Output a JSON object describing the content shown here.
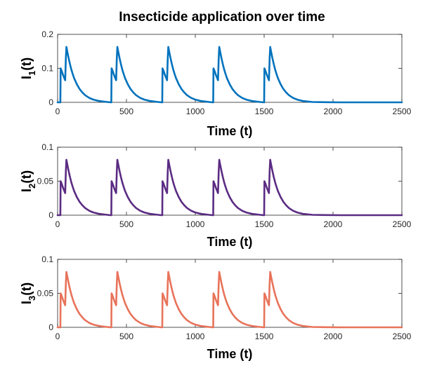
{
  "chart_data": [
    {
      "type": "line",
      "title": "Insecticide application over time",
      "xlabel": "Time (t)",
      "ylabel_main": "I",
      "ylabel_sub": "1",
      "ylabel_tail": "(t)",
      "xlim": [
        0,
        2500
      ],
      "ylim": [
        0,
        0.2
      ],
      "xticks": [
        "0",
        "500",
        "1000",
        "1500",
        "2000",
        "2500"
      ],
      "yticks": [
        "0",
        "0.1",
        "0.2"
      ],
      "color": "#0072BD",
      "series": [
        {
          "name": "I1(t)",
          "x": [
            0,
            20,
            22,
            30,
            40,
            45,
            55,
            60,
            64,
            70,
            80,
            90,
            100,
            110,
            120,
            140,
            160,
            180,
            200,
            230,
            260,
            300,
            360,
            385,
            390,
            392,
            400,
            410,
            415,
            425,
            430,
            434,
            440,
            450,
            460,
            470,
            480,
            490,
            510,
            530,
            550,
            570,
            600,
            630,
            670,
            730,
            755,
            760,
            762,
            770,
            780,
            785,
            795,
            800,
            804,
            810,
            820,
            830,
            840,
            850,
            860,
            880,
            900,
            920,
            940,
            970,
            1000,
            1040,
            1100,
            1125,
            1130,
            1132,
            1140,
            1150,
            1155,
            1165,
            1170,
            1174,
            1180,
            1190,
            1200,
            1210,
            1220,
            1230,
            1250,
            1270,
            1290,
            1310,
            1340,
            1370,
            1410,
            1470,
            1495,
            1500,
            1502,
            1510,
            1520,
            1525,
            1535,
            1540,
            1544,
            1550,
            1560,
            1570,
            1580,
            1590,
            1600,
            1620,
            1640,
            1660,
            1680,
            1710,
            1740,
            1780,
            1850,
            1950,
            2050,
            2200,
            2350,
            2500
          ],
          "y": [
            0,
            0,
            0.1,
            0.092,
            0.08,
            0.075,
            0.065,
            0.13,
            0.163,
            0.15,
            0.13,
            0.112,
            0.096,
            0.083,
            0.071,
            0.053,
            0.039,
            0.029,
            0.021,
            0.013,
            0.008,
            0.004,
            0.001,
            0,
            0,
            0.1,
            0.092,
            0.08,
            0.075,
            0.065,
            0.13,
            0.163,
            0.15,
            0.13,
            0.112,
            0.096,
            0.083,
            0.071,
            0.053,
            0.039,
            0.029,
            0.021,
            0.013,
            0.008,
            0.004,
            0.001,
            0,
            0,
            0.1,
            0.092,
            0.08,
            0.075,
            0.065,
            0.13,
            0.163,
            0.15,
            0.13,
            0.112,
            0.096,
            0.083,
            0.071,
            0.053,
            0.039,
            0.029,
            0.021,
            0.013,
            0.008,
            0.004,
            0.001,
            0,
            0,
            0.1,
            0.092,
            0.08,
            0.075,
            0.065,
            0.13,
            0.163,
            0.15,
            0.13,
            0.112,
            0.096,
            0.083,
            0.071,
            0.053,
            0.039,
            0.029,
            0.021,
            0.013,
            0.008,
            0.004,
            0.001,
            0,
            0,
            0.1,
            0.092,
            0.08,
            0.075,
            0.065,
            0.13,
            0.163,
            0.15,
            0.13,
            0.112,
            0.096,
            0.083,
            0.071,
            0.053,
            0.039,
            0.029,
            0.021,
            0.013,
            0.008,
            0.004,
            0.001,
            0.0003,
            0,
            0,
            0,
            0
          ]
        }
      ]
    },
    {
      "type": "line",
      "title": "",
      "xlabel": "Time (t)",
      "ylabel_main": "I",
      "ylabel_sub": "2",
      "ylabel_tail": "(t)",
      "xlim": [
        0,
        2500
      ],
      "ylim": [
        0,
        0.1
      ],
      "xticks": [
        "0",
        "500",
        "1000",
        "1500",
        "2000",
        "2500"
      ],
      "yticks": [
        "0",
        "0.05",
        "0.1"
      ],
      "color": "#5B2C83",
      "series": [
        {
          "name": "I2(t)",
          "x": [
            0,
            20,
            22,
            30,
            40,
            45,
            55,
            60,
            64,
            70,
            80,
            90,
            100,
            110,
            120,
            140,
            160,
            180,
            200,
            230,
            260,
            300,
            360,
            385,
            390,
            392,
            400,
            410,
            415,
            425,
            430,
            434,
            440,
            450,
            460,
            470,
            480,
            490,
            510,
            530,
            550,
            570,
            600,
            630,
            670,
            730,
            755,
            760,
            762,
            770,
            780,
            785,
            795,
            800,
            804,
            810,
            820,
            830,
            840,
            850,
            860,
            880,
            900,
            920,
            940,
            970,
            1000,
            1040,
            1100,
            1125,
            1130,
            1132,
            1140,
            1150,
            1155,
            1165,
            1170,
            1174,
            1180,
            1190,
            1200,
            1210,
            1220,
            1230,
            1250,
            1270,
            1290,
            1310,
            1340,
            1370,
            1410,
            1470,
            1495,
            1500,
            1502,
            1510,
            1520,
            1525,
            1535,
            1540,
            1544,
            1550,
            1560,
            1570,
            1580,
            1590,
            1600,
            1620,
            1640,
            1660,
            1680,
            1710,
            1740,
            1780,
            1850,
            1950,
            2050,
            2200,
            2350,
            2500
          ],
          "y": [
            0,
            0,
            0.05,
            0.046,
            0.04,
            0.0375,
            0.0325,
            0.065,
            0.0815,
            0.075,
            0.065,
            0.056,
            0.048,
            0.0415,
            0.0355,
            0.0265,
            0.0195,
            0.0145,
            0.0105,
            0.0065,
            0.004,
            0.002,
            0.0005,
            0,
            0,
            0.05,
            0.046,
            0.04,
            0.0375,
            0.0325,
            0.065,
            0.0815,
            0.075,
            0.065,
            0.056,
            0.048,
            0.0415,
            0.0355,
            0.0265,
            0.0195,
            0.0145,
            0.0105,
            0.0065,
            0.004,
            0.002,
            0.0005,
            0,
            0,
            0.05,
            0.046,
            0.04,
            0.0375,
            0.0325,
            0.065,
            0.0815,
            0.075,
            0.065,
            0.056,
            0.048,
            0.0415,
            0.0355,
            0.0265,
            0.0195,
            0.0145,
            0.0105,
            0.0065,
            0.004,
            0.002,
            0.0005,
            0,
            0,
            0.05,
            0.046,
            0.04,
            0.0375,
            0.0325,
            0.065,
            0.0815,
            0.075,
            0.065,
            0.056,
            0.048,
            0.0415,
            0.0355,
            0.0265,
            0.0195,
            0.0145,
            0.0105,
            0.0065,
            0.004,
            0.002,
            0.0005,
            0,
            0,
            0.05,
            0.046,
            0.04,
            0.0375,
            0.0325,
            0.065,
            0.0815,
            0.075,
            0.065,
            0.056,
            0.048,
            0.0415,
            0.0355,
            0.0265,
            0.0195,
            0.0145,
            0.0105,
            0.0065,
            0.004,
            0.002,
            0.0005,
            0.00015,
            0,
            0,
            0,
            0
          ]
        }
      ]
    },
    {
      "type": "line",
      "title": "",
      "xlabel": "Time (t)",
      "ylabel_main": "I",
      "ylabel_sub": "3",
      "ylabel_tail": "(t)",
      "xlim": [
        0,
        2500
      ],
      "ylim": [
        0,
        0.1
      ],
      "xticks": [
        "0",
        "500",
        "1000",
        "1500",
        "2000",
        "2500"
      ],
      "yticks": [
        "0",
        "0.05",
        "0.1"
      ],
      "color": "#E8735A",
      "series": [
        {
          "name": "I3(t)",
          "x": [
            0,
            20,
            22,
            30,
            40,
            45,
            55,
            60,
            64,
            70,
            80,
            90,
            100,
            110,
            120,
            140,
            160,
            180,
            200,
            230,
            260,
            300,
            360,
            385,
            390,
            392,
            400,
            410,
            415,
            425,
            430,
            434,
            440,
            450,
            460,
            470,
            480,
            490,
            510,
            530,
            550,
            570,
            600,
            630,
            670,
            730,
            755,
            760,
            762,
            770,
            780,
            785,
            795,
            800,
            804,
            810,
            820,
            830,
            840,
            850,
            860,
            880,
            900,
            920,
            940,
            970,
            1000,
            1040,
            1100,
            1125,
            1130,
            1132,
            1140,
            1150,
            1155,
            1165,
            1170,
            1174,
            1180,
            1190,
            1200,
            1210,
            1220,
            1230,
            1250,
            1270,
            1290,
            1310,
            1340,
            1370,
            1410,
            1470,
            1495,
            1500,
            1502,
            1510,
            1520,
            1525,
            1535,
            1540,
            1544,
            1550,
            1560,
            1570,
            1580,
            1590,
            1600,
            1620,
            1640,
            1660,
            1680,
            1710,
            1740,
            1780,
            1850,
            1950,
            2050,
            2200,
            2350,
            2500
          ],
          "y": [
            0,
            0,
            0.05,
            0.046,
            0.04,
            0.0375,
            0.0325,
            0.065,
            0.0815,
            0.075,
            0.065,
            0.056,
            0.048,
            0.0415,
            0.0355,
            0.0265,
            0.0195,
            0.0145,
            0.0105,
            0.0065,
            0.004,
            0.002,
            0.0005,
            0,
            0,
            0.05,
            0.046,
            0.04,
            0.0375,
            0.0325,
            0.065,
            0.0815,
            0.075,
            0.065,
            0.056,
            0.048,
            0.0415,
            0.0355,
            0.0265,
            0.0195,
            0.0145,
            0.0105,
            0.0065,
            0.004,
            0.002,
            0.0005,
            0,
            0,
            0.05,
            0.046,
            0.04,
            0.0375,
            0.0325,
            0.065,
            0.0815,
            0.075,
            0.065,
            0.056,
            0.048,
            0.0415,
            0.0355,
            0.0265,
            0.0195,
            0.0145,
            0.0105,
            0.0065,
            0.004,
            0.002,
            0.0005,
            0,
            0,
            0.05,
            0.046,
            0.04,
            0.0375,
            0.0325,
            0.065,
            0.0815,
            0.075,
            0.065,
            0.056,
            0.048,
            0.0415,
            0.0355,
            0.0265,
            0.0195,
            0.0145,
            0.0105,
            0.0065,
            0.004,
            0.002,
            0.0005,
            0,
            0,
            0.05,
            0.046,
            0.04,
            0.0375,
            0.0325,
            0.065,
            0.0815,
            0.075,
            0.065,
            0.056,
            0.048,
            0.0415,
            0.0355,
            0.0265,
            0.0195,
            0.0145,
            0.0105,
            0.0065,
            0.004,
            0.002,
            0.0005,
            0.00015,
            0,
            0,
            0,
            0
          ]
        }
      ]
    }
  ]
}
